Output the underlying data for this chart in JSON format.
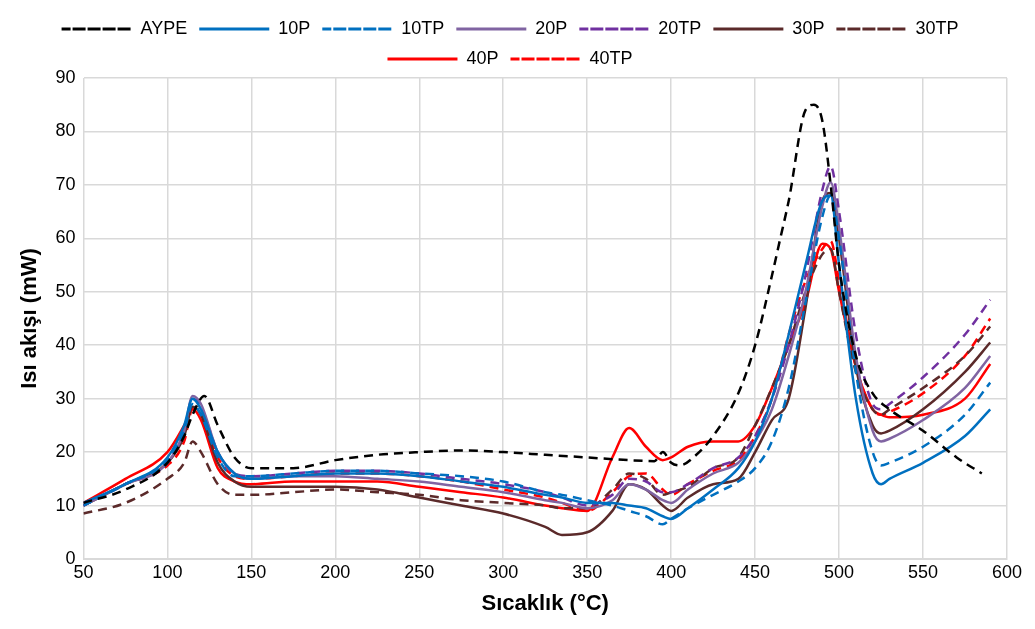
{
  "chart_data": {
    "type": "line",
    "xlabel": "Sıcaklık (°C)",
    "ylabel": "Isı akışı (mW)",
    "xlim": [
      50,
      600
    ],
    "xticks": [
      50,
      100,
      150,
      200,
      250,
      300,
      350,
      400,
      450,
      500,
      550,
      600
    ],
    "ylim": [
      0,
      90
    ],
    "yticks": [
      0,
      10,
      20,
      30,
      40,
      50,
      60,
      70,
      80,
      90
    ],
    "grid": true,
    "legend": "top",
    "marker": "none",
    "x": [
      50,
      75,
      100,
      110,
      115,
      120,
      130,
      140,
      150,
      175,
      200,
      225,
      250,
      275,
      300,
      325,
      335,
      350,
      365,
      375,
      385,
      395,
      400,
      410,
      425,
      440,
      450,
      460,
      470,
      480,
      490,
      495,
      500,
      510,
      520,
      525,
      530,
      550,
      575,
      590
    ],
    "series": [
      {
        "name": "AYPE",
        "color": "#000000",
        "line_style": "dashed",
        "x": [
          50,
          75,
          100,
          110,
          115,
          122,
          130,
          140,
          150,
          175,
          200,
          225,
          250,
          275,
          300,
          325,
          350,
          375,
          390,
          395,
          400,
          405,
          415,
          425,
          440,
          450,
          460,
          465,
          470,
          480,
          485,
          490,
          495,
          500,
          510,
          520,
          530,
          550,
          570,
          585
        ],
        "values": [
          10.5,
          13,
          18,
          23,
          27,
          30.5,
          25,
          19,
          17,
          17,
          18.5,
          19.5,
          20,
          20.3,
          20,
          19.5,
          19,
          18.5,
          18.3,
          20,
          18,
          17.5,
          19.5,
          23,
          31,
          40,
          53,
          60,
          67,
          84,
          85,
          82,
          70,
          55,
          38,
          31,
          28,
          24,
          19,
          16
        ]
      },
      {
        "name": "10P",
        "color": "#0070c0",
        "line_style": "solid",
        "values": [
          10.5,
          14,
          19,
          25,
          30,
          28,
          20,
          16,
          15,
          15.5,
          16,
          16,
          15.5,
          14.5,
          13.5,
          12,
          11.5,
          10.5,
          10.5,
          10,
          9.5,
          8,
          7.5,
          9.5,
          13,
          17,
          22,
          30,
          42,
          55,
          67,
          68,
          55,
          30,
          16,
          14,
          15,
          18,
          23,
          28
        ]
      },
      {
        "name": "10TP",
        "color": "#0070c0",
        "line_style": "dashed",
        "values": [
          10,
          14,
          18.5,
          24,
          29,
          27,
          19,
          15.5,
          15.5,
          16,
          16.5,
          16.5,
          16,
          15.5,
          14.5,
          12.5,
          12,
          11,
          10,
          9,
          8,
          6.5,
          7.5,
          9.5,
          12,
          14.5,
          17,
          22,
          32,
          48,
          64,
          68,
          60,
          35,
          20,
          17.5,
          18,
          21,
          27,
          33
        ]
      },
      {
        "name": "20P",
        "color": "#8064a2",
        "line_style": "solid",
        "values": [
          10,
          14,
          18,
          24,
          30.5,
          29,
          20,
          16,
          15,
          15.5,
          15.5,
          15,
          14.5,
          13.5,
          12.5,
          11,
          10.5,
          9.5,
          11,
          14,
          13,
          11,
          10.5,
          13,
          16,
          18,
          22,
          28,
          38,
          50,
          66,
          70.5,
          62,
          38,
          24,
          22,
          22.5,
          26,
          32,
          38
        ]
      },
      {
        "name": "20TP",
        "color": "#7030a0",
        "line_style": "dashed",
        "values": [
          10,
          14,
          18,
          24,
          30,
          28.5,
          20,
          16,
          15.5,
          16,
          16.5,
          16.5,
          16,
          15,
          14,
          12.5,
          11.5,
          10,
          12,
          15,
          14.5,
          12.5,
          12.5,
          14,
          17,
          19,
          23,
          30,
          40,
          53,
          69,
          73.5,
          65,
          42,
          29,
          28,
          29,
          34,
          42,
          48.5
        ]
      },
      {
        "name": "30P",
        "color": "#5b2a2a",
        "line_style": "solid",
        "values": [
          10,
          14,
          18,
          23,
          28.5,
          27,
          18,
          14.5,
          13.5,
          13.5,
          13.5,
          13,
          11.5,
          10,
          8.5,
          6,
          4.5,
          5,
          9,
          14,
          13,
          10,
          9,
          11.5,
          14,
          15,
          20,
          26,
          30,
          47,
          67,
          68.5,
          60,
          36,
          25,
          23.5,
          24,
          28,
          35,
          40.5
        ]
      },
      {
        "name": "30TP",
        "color": "#5b2a2a",
        "line_style": "dashed",
        "values": [
          8.5,
          10.5,
          15,
          18,
          22,
          20,
          14,
          12,
          12,
          12.5,
          13,
          12.5,
          12,
          11,
          10.5,
          10,
          9.5,
          9.5,
          13,
          16,
          15,
          12,
          12.5,
          13.5,
          17,
          19,
          25,
          32,
          40,
          50,
          57,
          58,
          50,
          35,
          28,
          27,
          28,
          32,
          38,
          43.5
        ]
      },
      {
        "name": "40P",
        "color": "#ff0000",
        "line_style": "solid",
        "values": [
          10.5,
          15,
          20,
          25,
          28,
          26,
          17,
          14.5,
          14,
          14.5,
          14.5,
          14.5,
          13.5,
          12.5,
          11.5,
          10,
          9.5,
          9,
          19,
          24.5,
          21,
          18.5,
          19,
          21,
          22,
          22,
          25,
          32,
          40,
          48,
          59,
          58,
          50,
          36,
          28,
          27,
          26.5,
          27,
          30,
          36.5
        ]
      },
      {
        "name": "40TP",
        "color": "#ff0000",
        "line_style": "dashed",
        "values": [
          10,
          14,
          17.5,
          22,
          28,
          27,
          19,
          15.5,
          15,
          15.5,
          16,
          16,
          15.5,
          14.5,
          13,
          11.5,
          10.5,
          9,
          12.5,
          15.5,
          16,
          13,
          12,
          14,
          16.5,
          18.5,
          23,
          30,
          42,
          52,
          58,
          59.5,
          52,
          36,
          28,
          27,
          27.5,
          31,
          38,
          45
        ]
      }
    ]
  }
}
